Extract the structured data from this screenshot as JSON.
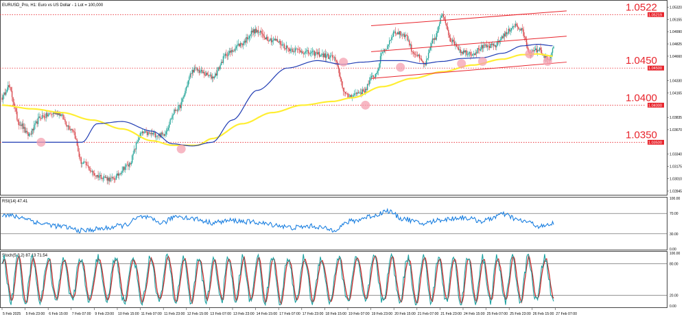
{
  "header": {
    "main_title": "EURUSD_Pro, H1:  Euro vs US Dollar - 1 Lot = 100,000",
    "rsi_title": "RSI(14) 47.41",
    "stoch_title": "Stoch(5,3,2) 87.13 71.54"
  },
  "colors": {
    "bull": "#27a69a",
    "bear": "#d9474c",
    "ma_fast": "#1f3bb3",
    "ma_slow": "#ffee33",
    "channel": "#e8232b",
    "level": "#e8232b",
    "touch": "#f4a0b0",
    "rsi": "#1a7fe0",
    "stoch_main": "#1aa0a0",
    "stoch_signal": "#c62828",
    "grid": "#444444"
  },
  "chart_data": [
    {
      "id": "price",
      "type": "candlestick",
      "title": "",
      "ylim": [
        1.0282,
        1.0538
      ],
      "y_ticks": [
        "1.05320",
        "1.05155",
        "1.04990",
        "1.04825",
        "1.04660",
        "1.04330",
        "1.04165",
        "1.03835",
        "1.03670",
        "1.03340",
        "1.03175",
        "1.03010",
        "1.02845"
      ],
      "x_ticks": [
        "5 Feb 2025",
        "5 Feb 23:00",
        "6 Feb 15:00",
        "7 Feb 07:00",
        "9 Feb 23:00",
        "10 Feb 15:00",
        "11 Feb 07:00",
        "11 Feb 23:00",
        "12 Feb 15:00",
        "13 Feb 07:00",
        "13 Feb 23:00",
        "14 Feb 15:00",
        "17 Feb 07:00",
        "17 Feb 23:00",
        "18 Feb 15:00",
        "19 Feb 07:00",
        "19 Feb 23:00",
        "20 Feb 15:00",
        "21 Feb 07:00",
        "21 Feb 23:00",
        "24 Feb 15:00",
        "25 Feb 07:00",
        "25 Feb 23:00",
        "26 Feb 15:00",
        "27 Feb 07:00"
      ],
      "levels": [
        {
          "value": 1.0522,
          "label": "1.0522",
          "tag": "1.05219"
        },
        {
          "value": 1.045,
          "label": "1.0450",
          "tag": "1.04500"
        },
        {
          "value": 1.04,
          "label": "1.0400",
          "tag": "1.04000"
        },
        {
          "value": 1.035,
          "label": "1.0350",
          "tag": "1.03500"
        }
      ],
      "channel": {
        "x_range": [
          "20 Feb 07:00",
          "27 Feb 08:00"
        ],
        "upper": [
          1.0507,
          1.0527
        ],
        "middle": [
          1.0472,
          1.0493
        ],
        "lower": [
          1.0436,
          1.0458
        ]
      },
      "touch_points": [
        {
          "x": "6 Feb 03:00",
          "y": 1.035
        },
        {
          "x": "12 Feb 13:00",
          "y": 1.0341
        },
        {
          "x": "18 Feb 18:00",
          "y": 1.0458
        },
        {
          "x": "19 Feb 18:00",
          "y": 1.04
        },
        {
          "x": "21 Feb 10:00",
          "y": 1.0451
        },
        {
          "x": "24 Feb 07:00",
          "y": 1.0456
        },
        {
          "x": "25 Feb 04:00",
          "y": 1.0459
        },
        {
          "x": "26 Feb 07:00",
          "y": 1.0469
        },
        {
          "x": "27 Feb 02:00",
          "y": 1.0459
        }
      ],
      "close_anchors": [
        [
          0,
          1.041
        ],
        [
          6,
          1.0425
        ],
        [
          18,
          1.0375
        ],
        [
          26,
          1.036
        ],
        [
          40,
          1.0385
        ],
        [
          55,
          1.039
        ],
        [
          70,
          1.0368
        ],
        [
          80,
          1.0322
        ],
        [
          95,
          1.0305
        ],
        [
          110,
          1.03
        ],
        [
          125,
          1.0318
        ],
        [
          140,
          1.0362
        ],
        [
          160,
          1.036
        ],
        [
          175,
          1.0395
        ],
        [
          192,
          1.0448
        ],
        [
          210,
          1.0438
        ],
        [
          226,
          1.047
        ],
        [
          238,
          1.0482
        ],
        [
          252,
          1.05
        ],
        [
          270,
          1.0488
        ],
        [
          290,
          1.0475
        ],
        [
          310,
          1.047
        ],
        [
          330,
          1.0465
        ],
        [
          345,
          1.0412
        ],
        [
          360,
          1.0418
        ],
        [
          372,
          1.044
        ],
        [
          382,
          1.0475
        ],
        [
          392,
          1.0498
        ],
        [
          402,
          1.0495
        ],
        [
          412,
          1.047
        ],
        [
          422,
          1.0455
        ],
        [
          432,
          1.049
        ],
        [
          440,
          1.052
        ],
        [
          450,
          1.0485
        ],
        [
          460,
          1.0472
        ],
        [
          470,
          1.047
        ],
        [
          480,
          1.0478
        ],
        [
          492,
          1.048
        ],
        [
          502,
          1.0495
        ],
        [
          512,
          1.0508
        ],
        [
          518,
          1.0502
        ],
        [
          528,
          1.047
        ],
        [
          536,
          1.0475
        ],
        [
          546,
          1.046
        ],
        [
          551,
          1.0476
        ]
      ],
      "ma_fast_anchors": [
        [
          0,
          1.035
        ],
        [
          50,
          1.035
        ],
        [
          80,
          1.035
        ],
        [
          95,
          1.0375
        ],
        [
          120,
          1.0378
        ],
        [
          150,
          1.0365
        ],
        [
          170,
          1.0348
        ],
        [
          190,
          1.0345
        ],
        [
          210,
          1.035
        ],
        [
          230,
          1.038
        ],
        [
          255,
          1.042
        ],
        [
          285,
          1.045
        ],
        [
          315,
          1.046
        ],
        [
          340,
          1.0455
        ],
        [
          360,
          1.0458
        ],
        [
          380,
          1.046
        ],
        [
          400,
          1.046
        ],
        [
          420,
          1.0456
        ],
        [
          440,
          1.0459
        ],
        [
          460,
          1.0463
        ],
        [
          480,
          1.0464
        ],
        [
          500,
          1.047
        ],
        [
          520,
          1.048
        ],
        [
          535,
          1.0482
        ],
        [
          551,
          1.048
        ]
      ],
      "ma_slow_anchors": [
        [
          0,
          1.04
        ],
        [
          30,
          1.0395
        ],
        [
          60,
          1.039
        ],
        [
          90,
          1.038
        ],
        [
          120,
          1.0368
        ],
        [
          150,
          1.0352
        ],
        [
          170,
          1.0346
        ],
        [
          195,
          1.0346
        ],
        [
          210,
          1.0355
        ],
        [
          240,
          1.0375
        ],
        [
          270,
          1.039
        ],
        [
          300,
          1.04
        ],
        [
          330,
          1.0405
        ],
        [
          350,
          1.041
        ],
        [
          380,
          1.0425
        ],
        [
          410,
          1.0436
        ],
        [
          440,
          1.0445
        ],
        [
          470,
          1.0454
        ],
        [
          500,
          1.0462
        ],
        [
          520,
          1.0468
        ],
        [
          535,
          1.0469
        ],
        [
          551,
          1.0466
        ]
      ]
    },
    {
      "id": "rsi",
      "type": "line",
      "title": "",
      "ylim": [
        0,
        100
      ],
      "y_ticks": [
        "100.00",
        "70.00",
        "30.00",
        "0.00"
      ],
      "levels": [
        70,
        30
      ],
      "anchors": [
        [
          0,
          68
        ],
        [
          20,
          62
        ],
        [
          40,
          50
        ],
        [
          60,
          44
        ],
        [
          80,
          36
        ],
        [
          100,
          40
        ],
        [
          120,
          46
        ],
        [
          140,
          63
        ],
        [
          160,
          52
        ],
        [
          175,
          65
        ],
        [
          190,
          60
        ],
        [
          210,
          52
        ],
        [
          230,
          56
        ],
        [
          250,
          53
        ],
        [
          270,
          48
        ],
        [
          290,
          42
        ],
        [
          310,
          45
        ],
        [
          330,
          38
        ],
        [
          350,
          55
        ],
        [
          370,
          65
        ],
        [
          385,
          75
        ],
        [
          400,
          60
        ],
        [
          420,
          50
        ],
        [
          440,
          58
        ],
        [
          460,
          62
        ],
        [
          480,
          55
        ],
        [
          500,
          68
        ],
        [
          520,
          55
        ],
        [
          540,
          44
        ],
        [
          551,
          50
        ]
      ]
    },
    {
      "id": "stoch",
      "type": "line",
      "title": "",
      "ylim": [
        0,
        100
      ],
      "y_ticks": [
        "100.00",
        "80.00",
        "20.00",
        "0.00"
      ],
      "levels": [
        80,
        20
      ],
      "period": 16,
      "phase": 1.0,
      "last_values": [
        87.13,
        71.54
      ]
    }
  ]
}
